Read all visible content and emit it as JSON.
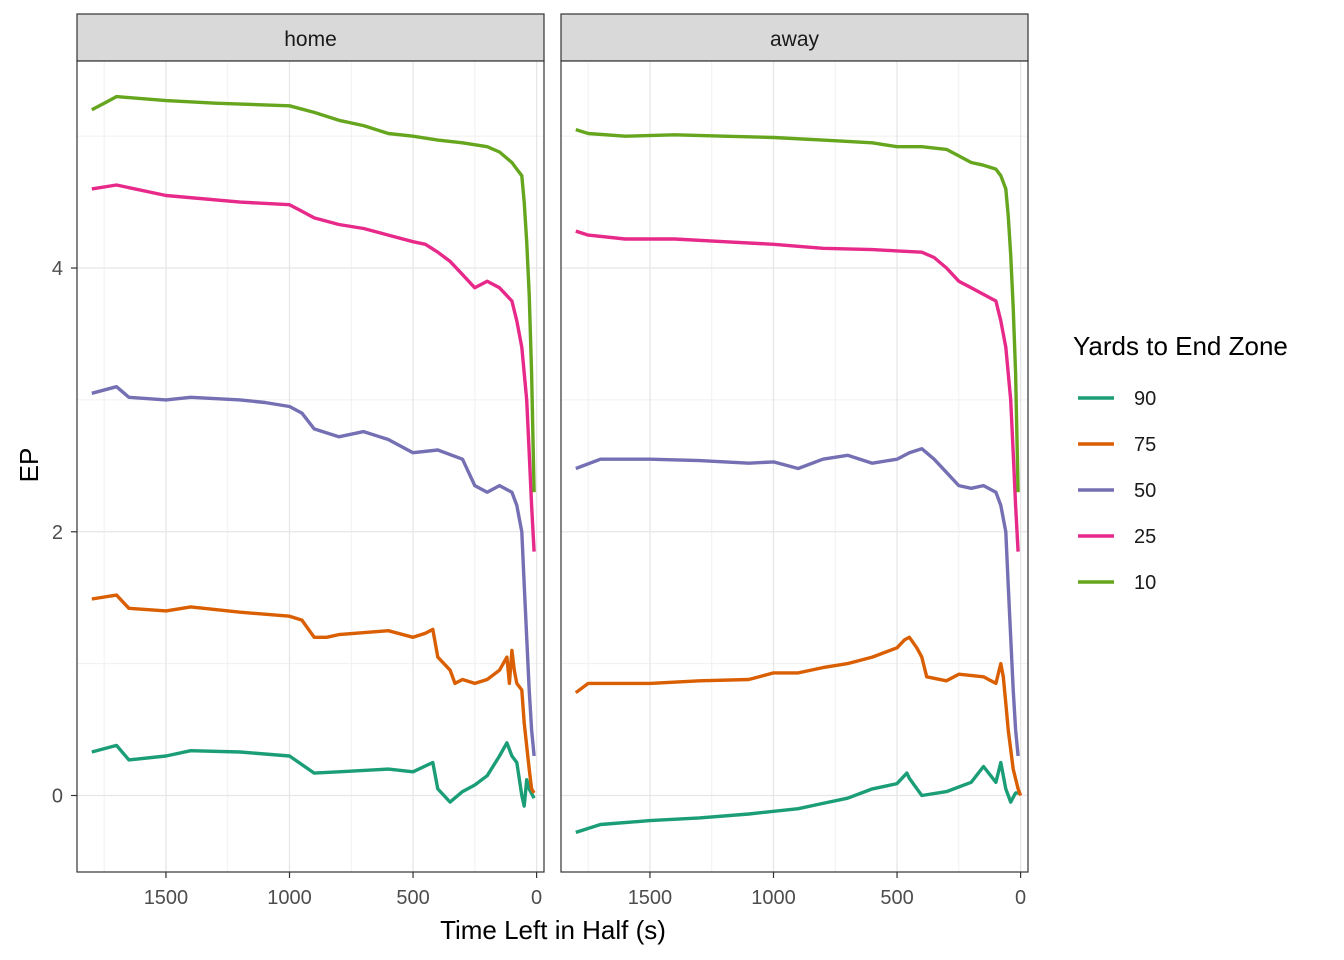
{
  "chart_data": {
    "type": "line",
    "facets": [
      "home",
      "away"
    ],
    "xlabel": "Time Left in Half (s)",
    "ylabel": "EP",
    "xlim": [
      1860,
      -30
    ],
    "x_reversed": true,
    "ylim": [
      -0.58,
      5.57
    ],
    "x_ticks": [
      1500,
      1000,
      500,
      0
    ],
    "y_ticks": [
      0,
      2,
      4
    ],
    "grid": true,
    "legend": {
      "title": "Yards to End Zone",
      "placement": "right",
      "entries": [
        "90",
        "75",
        "50",
        "25",
        "10"
      ]
    },
    "series": [
      {
        "name": "90",
        "color": "#1B9E77",
        "home": [
          [
            1800,
            0.33
          ],
          [
            1700,
            0.38
          ],
          [
            1650,
            0.27
          ],
          [
            1500,
            0.3
          ],
          [
            1400,
            0.34
          ],
          [
            1200,
            0.33
          ],
          [
            1000,
            0.3
          ],
          [
            900,
            0.17
          ],
          [
            800,
            0.18
          ],
          [
            600,
            0.2
          ],
          [
            500,
            0.18
          ],
          [
            420,
            0.25
          ],
          [
            400,
            0.05
          ],
          [
            350,
            -0.05
          ],
          [
            300,
            0.03
          ],
          [
            250,
            0.08
          ],
          [
            200,
            0.15
          ],
          [
            150,
            0.3
          ],
          [
            120,
            0.4
          ],
          [
            100,
            0.3
          ],
          [
            80,
            0.25
          ],
          [
            60,
            0.0
          ],
          [
            50,
            -0.08
          ],
          [
            40,
            0.12
          ],
          [
            30,
            0.05
          ],
          [
            10,
            -0.02
          ]
        ],
        "away": [
          [
            1800,
            -0.28
          ],
          [
            1700,
            -0.22
          ],
          [
            1500,
            -0.19
          ],
          [
            1300,
            -0.17
          ],
          [
            1100,
            -0.14
          ],
          [
            900,
            -0.1
          ],
          [
            800,
            -0.06
          ],
          [
            700,
            -0.02
          ],
          [
            600,
            0.05
          ],
          [
            550,
            0.07
          ],
          [
            500,
            0.09
          ],
          [
            460,
            0.17
          ],
          [
            450,
            0.13
          ],
          [
            400,
            0.0
          ],
          [
            300,
            0.03
          ],
          [
            200,
            0.1
          ],
          [
            150,
            0.22
          ],
          [
            100,
            0.1
          ],
          [
            80,
            0.25
          ],
          [
            60,
            0.05
          ],
          [
            40,
            -0.05
          ],
          [
            20,
            0.02
          ],
          [
            5,
            0.02
          ]
        ]
      },
      {
        "name": "75",
        "color": "#D95F02",
        "home": [
          [
            1800,
            1.49
          ],
          [
            1700,
            1.52
          ],
          [
            1650,
            1.42
          ],
          [
            1500,
            1.4
          ],
          [
            1400,
            1.43
          ],
          [
            1200,
            1.39
          ],
          [
            1000,
            1.36
          ],
          [
            950,
            1.33
          ],
          [
            900,
            1.2
          ],
          [
            850,
            1.2
          ],
          [
            800,
            1.22
          ],
          [
            600,
            1.25
          ],
          [
            500,
            1.2
          ],
          [
            450,
            1.23
          ],
          [
            420,
            1.26
          ],
          [
            400,
            1.05
          ],
          [
            350,
            0.95
          ],
          [
            330,
            0.85
          ],
          [
            300,
            0.88
          ],
          [
            250,
            0.85
          ],
          [
            200,
            0.88
          ],
          [
            150,
            0.95
          ],
          [
            120,
            1.05
          ],
          [
            110,
            0.85
          ],
          [
            100,
            1.1
          ],
          [
            90,
            0.95
          ],
          [
            80,
            0.85
          ],
          [
            60,
            0.8
          ],
          [
            50,
            0.55
          ],
          [
            30,
            0.2
          ],
          [
            20,
            0.05
          ],
          [
            10,
            0.02
          ]
        ],
        "away": [
          [
            1800,
            0.78
          ],
          [
            1750,
            0.85
          ],
          [
            1500,
            0.85
          ],
          [
            1300,
            0.87
          ],
          [
            1100,
            0.88
          ],
          [
            1000,
            0.93
          ],
          [
            900,
            0.93
          ],
          [
            800,
            0.97
          ],
          [
            700,
            1.0
          ],
          [
            600,
            1.05
          ],
          [
            500,
            1.12
          ],
          [
            470,
            1.18
          ],
          [
            450,
            1.2
          ],
          [
            420,
            1.12
          ],
          [
            400,
            1.05
          ],
          [
            380,
            0.9
          ],
          [
            300,
            0.87
          ],
          [
            250,
            0.92
          ],
          [
            150,
            0.9
          ],
          [
            100,
            0.85
          ],
          [
            80,
            1.0
          ],
          [
            70,
            0.9
          ],
          [
            60,
            0.7
          ],
          [
            50,
            0.5
          ],
          [
            30,
            0.2
          ],
          [
            10,
            0.05
          ],
          [
            0,
            0.0
          ]
        ]
      },
      {
        "name": "50",
        "color": "#7570B3",
        "home": [
          [
            1800,
            3.05
          ],
          [
            1700,
            3.1
          ],
          [
            1650,
            3.02
          ],
          [
            1500,
            3.0
          ],
          [
            1400,
            3.02
          ],
          [
            1200,
            3.0
          ],
          [
            1100,
            2.98
          ],
          [
            1000,
            2.95
          ],
          [
            950,
            2.9
          ],
          [
            900,
            2.78
          ],
          [
            850,
            2.75
          ],
          [
            800,
            2.72
          ],
          [
            700,
            2.76
          ],
          [
            600,
            2.7
          ],
          [
            500,
            2.6
          ],
          [
            400,
            2.62
          ],
          [
            300,
            2.55
          ],
          [
            250,
            2.35
          ],
          [
            200,
            2.3
          ],
          [
            150,
            2.35
          ],
          [
            100,
            2.3
          ],
          [
            80,
            2.2
          ],
          [
            60,
            2.0
          ],
          [
            50,
            1.6
          ],
          [
            40,
            1.2
          ],
          [
            30,
            0.8
          ],
          [
            20,
            0.5
          ],
          [
            10,
            0.3
          ]
        ],
        "away": [
          [
            1800,
            2.48
          ],
          [
            1700,
            2.55
          ],
          [
            1500,
            2.55
          ],
          [
            1300,
            2.54
          ],
          [
            1100,
            2.52
          ],
          [
            1000,
            2.53
          ],
          [
            900,
            2.48
          ],
          [
            800,
            2.55
          ],
          [
            700,
            2.58
          ],
          [
            600,
            2.52
          ],
          [
            500,
            2.55
          ],
          [
            450,
            2.6
          ],
          [
            400,
            2.63
          ],
          [
            350,
            2.55
          ],
          [
            300,
            2.45
          ],
          [
            250,
            2.35
          ],
          [
            200,
            2.33
          ],
          [
            150,
            2.35
          ],
          [
            100,
            2.3
          ],
          [
            80,
            2.2
          ],
          [
            60,
            2.0
          ],
          [
            50,
            1.6
          ],
          [
            40,
            1.2
          ],
          [
            30,
            0.8
          ],
          [
            20,
            0.5
          ],
          [
            10,
            0.3
          ]
        ]
      },
      {
        "name": "25",
        "color": "#E7298A",
        "home": [
          [
            1800,
            4.6
          ],
          [
            1700,
            4.63
          ],
          [
            1500,
            4.55
          ],
          [
            1200,
            4.5
          ],
          [
            1000,
            4.48
          ],
          [
            950,
            4.43
          ],
          [
            900,
            4.38
          ],
          [
            800,
            4.33
          ],
          [
            700,
            4.3
          ],
          [
            600,
            4.25
          ],
          [
            500,
            4.2
          ],
          [
            450,
            4.18
          ],
          [
            400,
            4.12
          ],
          [
            350,
            4.05
          ],
          [
            300,
            3.95
          ],
          [
            250,
            3.85
          ],
          [
            200,
            3.9
          ],
          [
            150,
            3.85
          ],
          [
            100,
            3.75
          ],
          [
            80,
            3.6
          ],
          [
            60,
            3.4
          ],
          [
            40,
            3.0
          ],
          [
            30,
            2.6
          ],
          [
            20,
            2.2
          ],
          [
            10,
            1.85
          ]
        ],
        "away": [
          [
            1800,
            4.28
          ],
          [
            1750,
            4.25
          ],
          [
            1600,
            4.22
          ],
          [
            1400,
            4.22
          ],
          [
            1200,
            4.2
          ],
          [
            1000,
            4.18
          ],
          [
            800,
            4.15
          ],
          [
            600,
            4.14
          ],
          [
            500,
            4.13
          ],
          [
            400,
            4.12
          ],
          [
            350,
            4.08
          ],
          [
            300,
            4.0
          ],
          [
            250,
            3.9
          ],
          [
            200,
            3.85
          ],
          [
            150,
            3.8
          ],
          [
            100,
            3.75
          ],
          [
            80,
            3.6
          ],
          [
            60,
            3.4
          ],
          [
            40,
            3.0
          ],
          [
            30,
            2.6
          ],
          [
            20,
            2.2
          ],
          [
            10,
            1.85
          ]
        ]
      },
      {
        "name": "10",
        "color": "#66A61E",
        "home": [
          [
            1800,
            5.2
          ],
          [
            1750,
            5.25
          ],
          [
            1700,
            5.3
          ],
          [
            1500,
            5.27
          ],
          [
            1300,
            5.25
          ],
          [
            1000,
            5.23
          ],
          [
            900,
            5.18
          ],
          [
            800,
            5.12
          ],
          [
            700,
            5.08
          ],
          [
            600,
            5.02
          ],
          [
            500,
            5.0
          ],
          [
            400,
            4.97
          ],
          [
            300,
            4.95
          ],
          [
            200,
            4.92
          ],
          [
            150,
            4.88
          ],
          [
            100,
            4.8
          ],
          [
            80,
            4.75
          ],
          [
            60,
            4.7
          ],
          [
            50,
            4.5
          ],
          [
            40,
            4.2
          ],
          [
            30,
            3.8
          ],
          [
            20,
            3.2
          ],
          [
            10,
            2.3
          ]
        ],
        "away": [
          [
            1800,
            5.05
          ],
          [
            1750,
            5.02
          ],
          [
            1600,
            5.0
          ],
          [
            1400,
            5.01
          ],
          [
            1200,
            5.0
          ],
          [
            1000,
            4.99
          ],
          [
            800,
            4.97
          ],
          [
            600,
            4.95
          ],
          [
            500,
            4.92
          ],
          [
            400,
            4.92
          ],
          [
            300,
            4.9
          ],
          [
            250,
            4.85
          ],
          [
            200,
            4.8
          ],
          [
            150,
            4.78
          ],
          [
            100,
            4.75
          ],
          [
            80,
            4.7
          ],
          [
            60,
            4.6
          ],
          [
            50,
            4.4
          ],
          [
            40,
            4.1
          ],
          [
            30,
            3.7
          ],
          [
            20,
            3.2
          ],
          [
            10,
            2.3
          ]
        ]
      }
    ]
  }
}
